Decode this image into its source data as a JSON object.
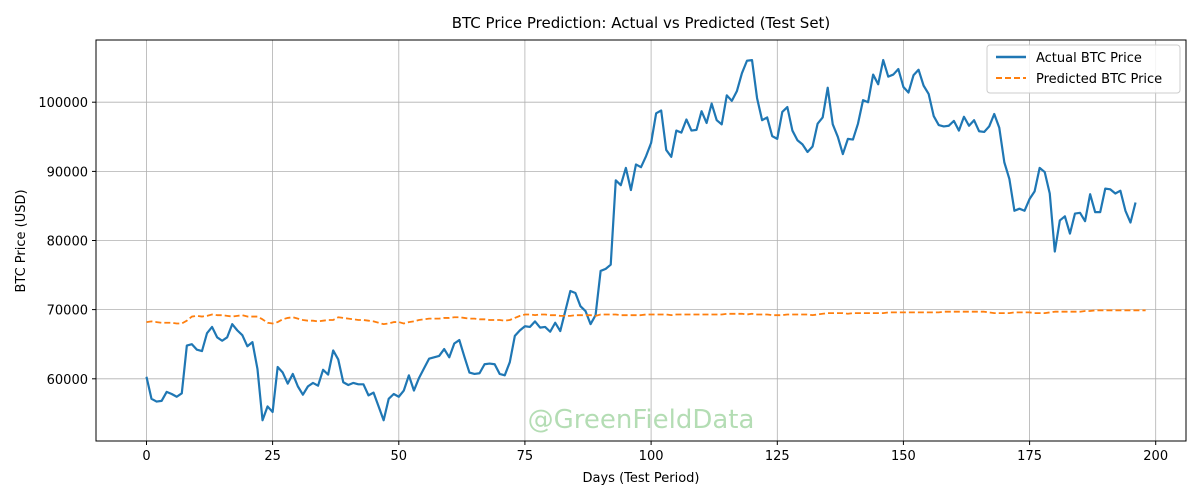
{
  "chart_data": {
    "type": "line",
    "title": "BTC Price Prediction: Actual vs Predicted (Test Set)",
    "xlabel": "Days (Test Period)",
    "ylabel": "BTC Price (USD)",
    "xlim": [
      -10,
      206
    ],
    "ylim": [
      51000,
      109000
    ],
    "xticks": [
      0,
      25,
      50,
      75,
      100,
      125,
      150,
      175,
      200
    ],
    "yticks": [
      60000,
      70000,
      80000,
      90000,
      100000
    ],
    "grid": true,
    "legend_position": "top-right",
    "watermark": "@GreenFieldData",
    "series": [
      {
        "name": "Actual BTC Price",
        "color": "#1f77b4",
        "style": "solid",
        "values": [
          60300,
          57100,
          56700,
          56800,
          58100,
          57800,
          57400,
          57900,
          64800,
          65000,
          64200,
          64000,
          66600,
          67500,
          66000,
          65500,
          66000,
          67900,
          67000,
          66300,
          64700,
          65300,
          61400,
          54000,
          56000,
          55200,
          61700,
          60900,
          59300,
          60700,
          58900,
          57700,
          58900,
          59400,
          59000,
          61300,
          60600,
          64100,
          62800,
          59500,
          59100,
          59400,
          59200,
          59200,
          57600,
          58000,
          56000,
          54000,
          57100,
          57800,
          57400,
          58300,
          60500,
          58300,
          60100,
          61500,
          62900,
          63100,
          63300,
          64300,
          63100,
          65100,
          65600,
          63200,
          60900,
          60700,
          60800,
          62100,
          62200,
          62100,
          60700,
          60500,
          62400,
          66200,
          67000,
          67600,
          67500,
          68300,
          67400,
          67500,
          66800,
          68100,
          66900,
          69800,
          72700,
          72400,
          70500,
          69800,
          67900,
          69200,
          75600,
          75900,
          76500,
          88700,
          88000,
          90500,
          87300,
          91000,
          90600,
          92200,
          94100,
          98400,
          98800,
          93100,
          92100,
          95900,
          95600,
          97500,
          95900,
          96000,
          98700,
          97000,
          99800,
          97400,
          96800,
          101000,
          100200,
          101600,
          104200,
          106000,
          106100,
          100600,
          97400,
          97800,
          95100,
          94700,
          98600,
          99300,
          95900,
          94500,
          93900,
          92800,
          93600,
          96900,
          97800,
          102100,
          96800,
          95000,
          92500,
          94700,
          94600,
          96900,
          100300,
          100000,
          104000,
          102600,
          106100,
          103700,
          104000,
          104800,
          102200,
          101400,
          103900,
          104700,
          102400,
          101200,
          98000,
          96700,
          96500,
          96600,
          97300,
          95900,
          97900,
          96600,
          97400,
          95800,
          95700,
          96500,
          98300,
          96300,
          91300,
          88900,
          84300,
          84600,
          84300,
          86000,
          87100,
          90500,
          89900,
          86800,
          78400,
          82900,
          83500,
          81000,
          83900,
          84000,
          82800,
          86700,
          84100,
          84100,
          87500,
          87400,
          86800,
          87200,
          84300,
          82600,
          85500
        ]
      },
      {
        "name": "Predicted BTC Price",
        "color": "#ff7f0e",
        "style": "dashed",
        "values": [
          68200,
          68300,
          68200,
          68100,
          68100,
          68100,
          68000,
          68000,
          68400,
          69000,
          69100,
          69000,
          69100,
          69300,
          69200,
          69200,
          69100,
          69000,
          69100,
          69200,
          69000,
          69000,
          69000,
          68600,
          68100,
          68000,
          68200,
          68600,
          68800,
          68900,
          68700,
          68500,
          68400,
          68400,
          68300,
          68400,
          68500,
          68500,
          68900,
          68800,
          68700,
          68600,
          68500,
          68500,
          68400,
          68300,
          68100,
          67900,
          68000,
          68200,
          68200,
          68000,
          68200,
          68300,
          68500,
          68600,
          68700,
          68700,
          68700,
          68800,
          68800,
          68900,
          68900,
          68800,
          68700,
          68700,
          68600,
          68600,
          68500,
          68500,
          68500,
          68400,
          68500,
          68800,
          69100,
          69300,
          69300,
          69200,
          69300,
          69300,
          69200,
          69200,
          69100,
          69100,
          69100,
          69200,
          69200,
          69200,
          69200,
          69100,
          69300,
          69300,
          69300,
          69300,
          69200,
          69200,
          69200,
          69200,
          69200,
          69300,
          69300,
          69300,
          69300,
          69300,
          69200,
          69300,
          69300,
          69300,
          69300,
          69300,
          69300,
          69300,
          69300,
          69300,
          69300,
          69400,
          69400,
          69400,
          69400,
          69300,
          69400,
          69300,
          69300,
          69300,
          69200,
          69200,
          69200,
          69300,
          69300,
          69300,
          69300,
          69300,
          69200,
          69300,
          69400,
          69500,
          69500,
          69500,
          69500,
          69400,
          69500,
          69500,
          69500,
          69500,
          69500,
          69500,
          69500,
          69600,
          69600,
          69600,
          69600,
          69600,
          69600,
          69600,
          69600,
          69600,
          69600,
          69600,
          69700,
          69700,
          69700,
          69700,
          69700,
          69700,
          69700,
          69700,
          69700,
          69600,
          69500,
          69500,
          69500,
          69500,
          69600,
          69600,
          69600,
          69600,
          69500,
          69500,
          69500,
          69600,
          69700,
          69700,
          69700,
          69700,
          69700,
          69700,
          69800,
          69800,
          69900,
          69900,
          69900,
          69900,
          69900,
          69900,
          69900,
          69900,
          69900,
          69900,
          69900
        ]
      }
    ]
  }
}
